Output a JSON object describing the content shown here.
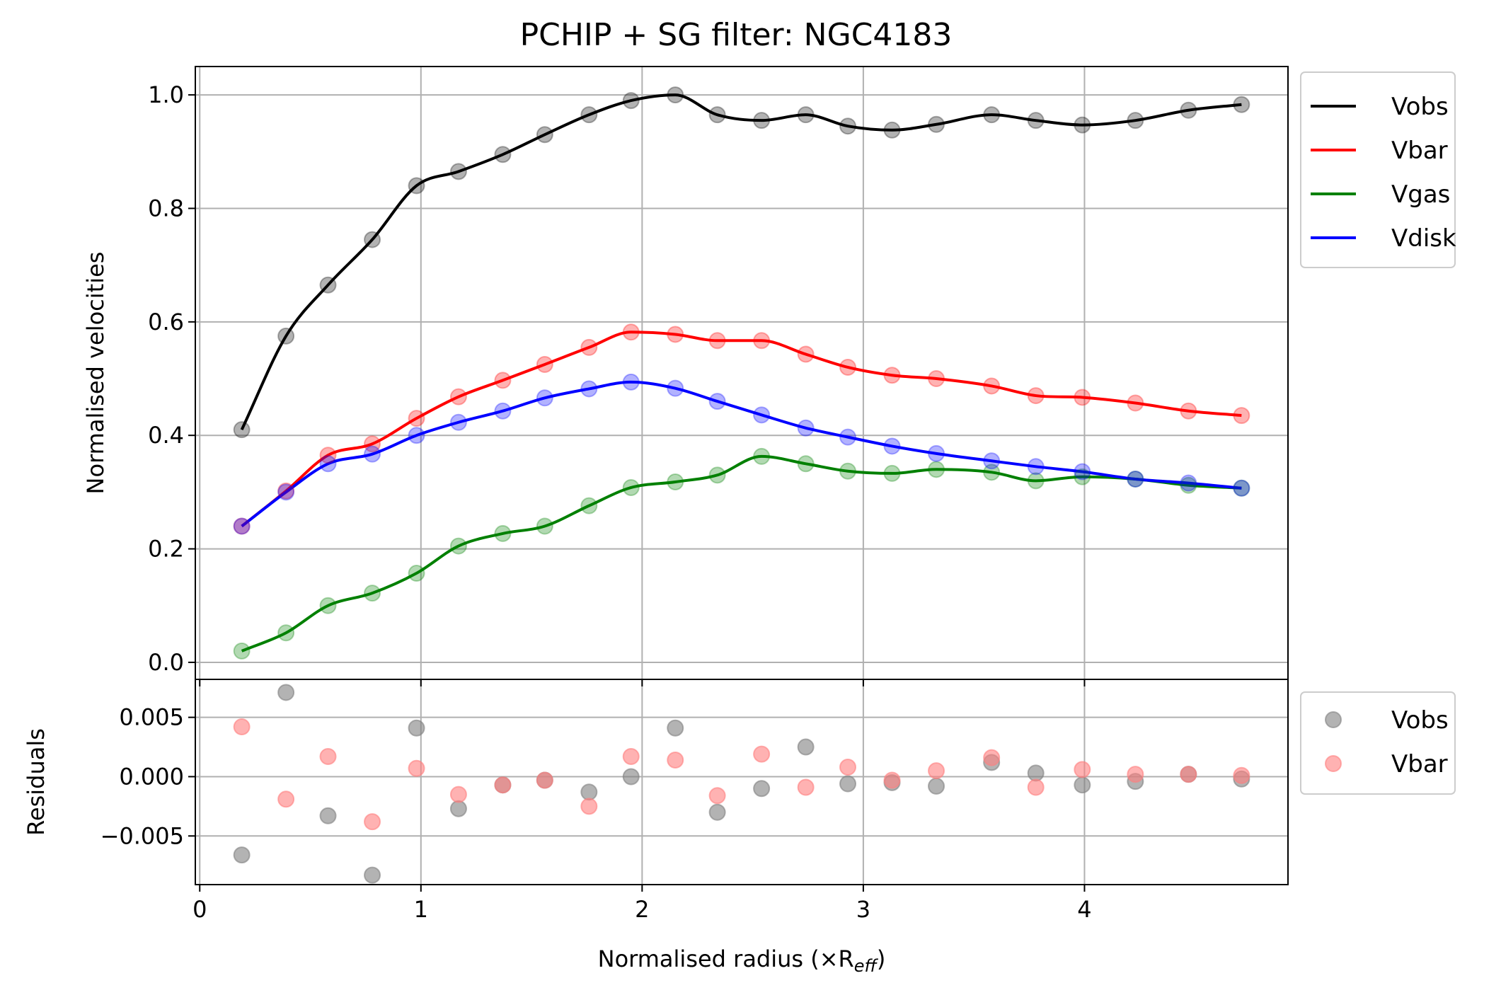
{
  "chart_data": [
    {
      "type": "line",
      "title": "PCHIP + SG filter: NGC4183",
      "xlabel": "",
      "ylabel": "Normalised velocities",
      "xlim": [
        -0.02,
        4.92
      ],
      "ylim": [
        -0.03,
        1.05
      ],
      "yticks": [
        "0.0",
        "0.2",
        "0.4",
        "0.6",
        "0.8",
        "1.0"
      ],
      "grid": true,
      "legend": "top-right, outside",
      "x": [
        0.19,
        0.39,
        0.58,
        0.78,
        0.98,
        1.17,
        1.37,
        1.56,
        1.76,
        1.95,
        2.15,
        2.34,
        2.54,
        2.74,
        2.93,
        3.13,
        3.33,
        3.58,
        3.78,
        3.99,
        4.23,
        4.47,
        4.71
      ],
      "series": [
        {
          "name": "Vobs",
          "color": "#000000",
          "values": [
            0.41,
            0.575,
            0.665,
            0.745,
            0.84,
            0.865,
            0.895,
            0.93,
            0.965,
            0.99,
            1.0,
            0.965,
            0.955,
            0.965,
            0.945,
            0.938,
            0.948,
            0.965,
            0.955,
            0.947,
            0.955,
            0.973,
            0.983
          ]
        },
        {
          "name": "Vbar",
          "color": "#ff0000",
          "values": [
            0.24,
            0.302,
            0.365,
            0.385,
            0.43,
            0.468,
            0.497,
            0.525,
            0.555,
            0.582,
            0.578,
            0.567,
            0.567,
            0.543,
            0.52,
            0.506,
            0.5,
            0.487,
            0.47,
            0.467,
            0.457,
            0.443,
            0.435
          ]
        },
        {
          "name": "Vgas",
          "color": "#008000",
          "values": [
            0.02,
            0.052,
            0.1,
            0.122,
            0.157,
            0.205,
            0.227,
            0.24,
            0.276,
            0.308,
            0.318,
            0.33,
            0.363,
            0.35,
            0.337,
            0.333,
            0.34,
            0.335,
            0.32,
            0.327,
            0.323,
            0.312,
            0.307
          ]
        },
        {
          "name": "Vdisk",
          "color": "#0000ff",
          "values": [
            0.24,
            0.3,
            0.35,
            0.367,
            0.4,
            0.423,
            0.443,
            0.466,
            0.482,
            0.494,
            0.483,
            0.46,
            0.436,
            0.413,
            0.397,
            0.381,
            0.368,
            0.355,
            0.345,
            0.336,
            0.323,
            0.316,
            0.307
          ]
        }
      ]
    },
    {
      "type": "scatter",
      "title": "",
      "xlabel": "Normalised radius (×R",
      "xlabel_subscript": "eff",
      "xlabel_suffix": ")",
      "ylabel": "Residuals",
      "xlim": [
        -0.02,
        4.92
      ],
      "ylim": [
        -0.0091,
        0.0082
      ],
      "xticks": [
        "0",
        "1",
        "2",
        "3",
        "4"
      ],
      "yticks": [
        "0.005",
        "0.000",
        "−0.005"
      ],
      "grid": true,
      "legend": "top-right, outside",
      "x": [
        0.19,
        0.39,
        0.58,
        0.78,
        0.98,
        1.17,
        1.37,
        1.56,
        1.76,
        1.95,
        2.15,
        2.34,
        2.54,
        2.74,
        2.93,
        3.13,
        3.33,
        3.58,
        3.78,
        3.99,
        4.23,
        4.47,
        4.71
      ],
      "series": [
        {
          "name": "Vobs",
          "color": "#808080",
          "values": [
            -0.0066,
            0.0071,
            -0.0033,
            -0.0083,
            0.0041,
            -0.0027,
            -0.0007,
            -0.0003,
            -0.0013,
            0.0,
            0.0041,
            -0.003,
            -0.001,
            0.0025,
            -0.0006,
            -0.0005,
            -0.0008,
            0.0012,
            0.0003,
            -0.0007,
            -0.0004,
            0.0002,
            -0.0002
          ]
        },
        {
          "name": "Vbar",
          "color": "#ff7f7f",
          "values": [
            0.0042,
            -0.0019,
            0.0017,
            -0.0038,
            0.0007,
            -0.0015,
            -0.0007,
            -0.0003,
            -0.0025,
            0.0017,
            0.0014,
            -0.0016,
            0.0019,
            -0.0009,
            0.0008,
            -0.0003,
            0.0005,
            0.0016,
            -0.0009,
            0.0006,
            0.0002,
            0.0002,
            0.0001
          ]
        }
      ]
    }
  ]
}
